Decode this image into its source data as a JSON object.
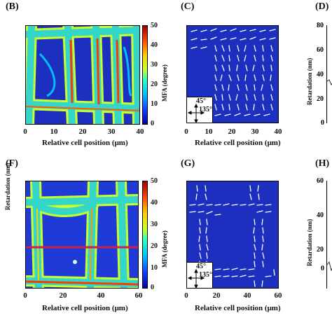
{
  "panels": {
    "B": {
      "label": "(B)"
    },
    "C": {
      "label": "(C)"
    },
    "D": {
      "label": "(D)"
    },
    "F": {
      "label": "(F)"
    },
    "G": {
      "label": "(G)"
    },
    "H": {
      "label": "(H)"
    }
  },
  "axes": {
    "x_label": "Relative cell position (μm)",
    "mfa_label": "MFA (degree)",
    "retardation_label": "Retardation (nm)",
    "top_x_ticks": [
      "0",
      "10",
      "20",
      "30",
      "40"
    ],
    "bottom_x_ticks": [
      "0",
      "20",
      "40",
      "60"
    ],
    "colorbar_ticks": [
      "50",
      "40",
      "30",
      "20",
      "10",
      "0"
    ],
    "D_y_ticks": [
      "80",
      "60",
      "40",
      "20",
      "0"
    ],
    "H_y_ticks": [
      "60",
      "40",
      "20",
      "0"
    ]
  },
  "legend": {
    "angle_45": "45°",
    "angle_135": "135°"
  },
  "colors": {
    "map_background": "#1c2fbf",
    "cell_wall": "#33d6c8",
    "line_marker": "#d0204a"
  }
}
